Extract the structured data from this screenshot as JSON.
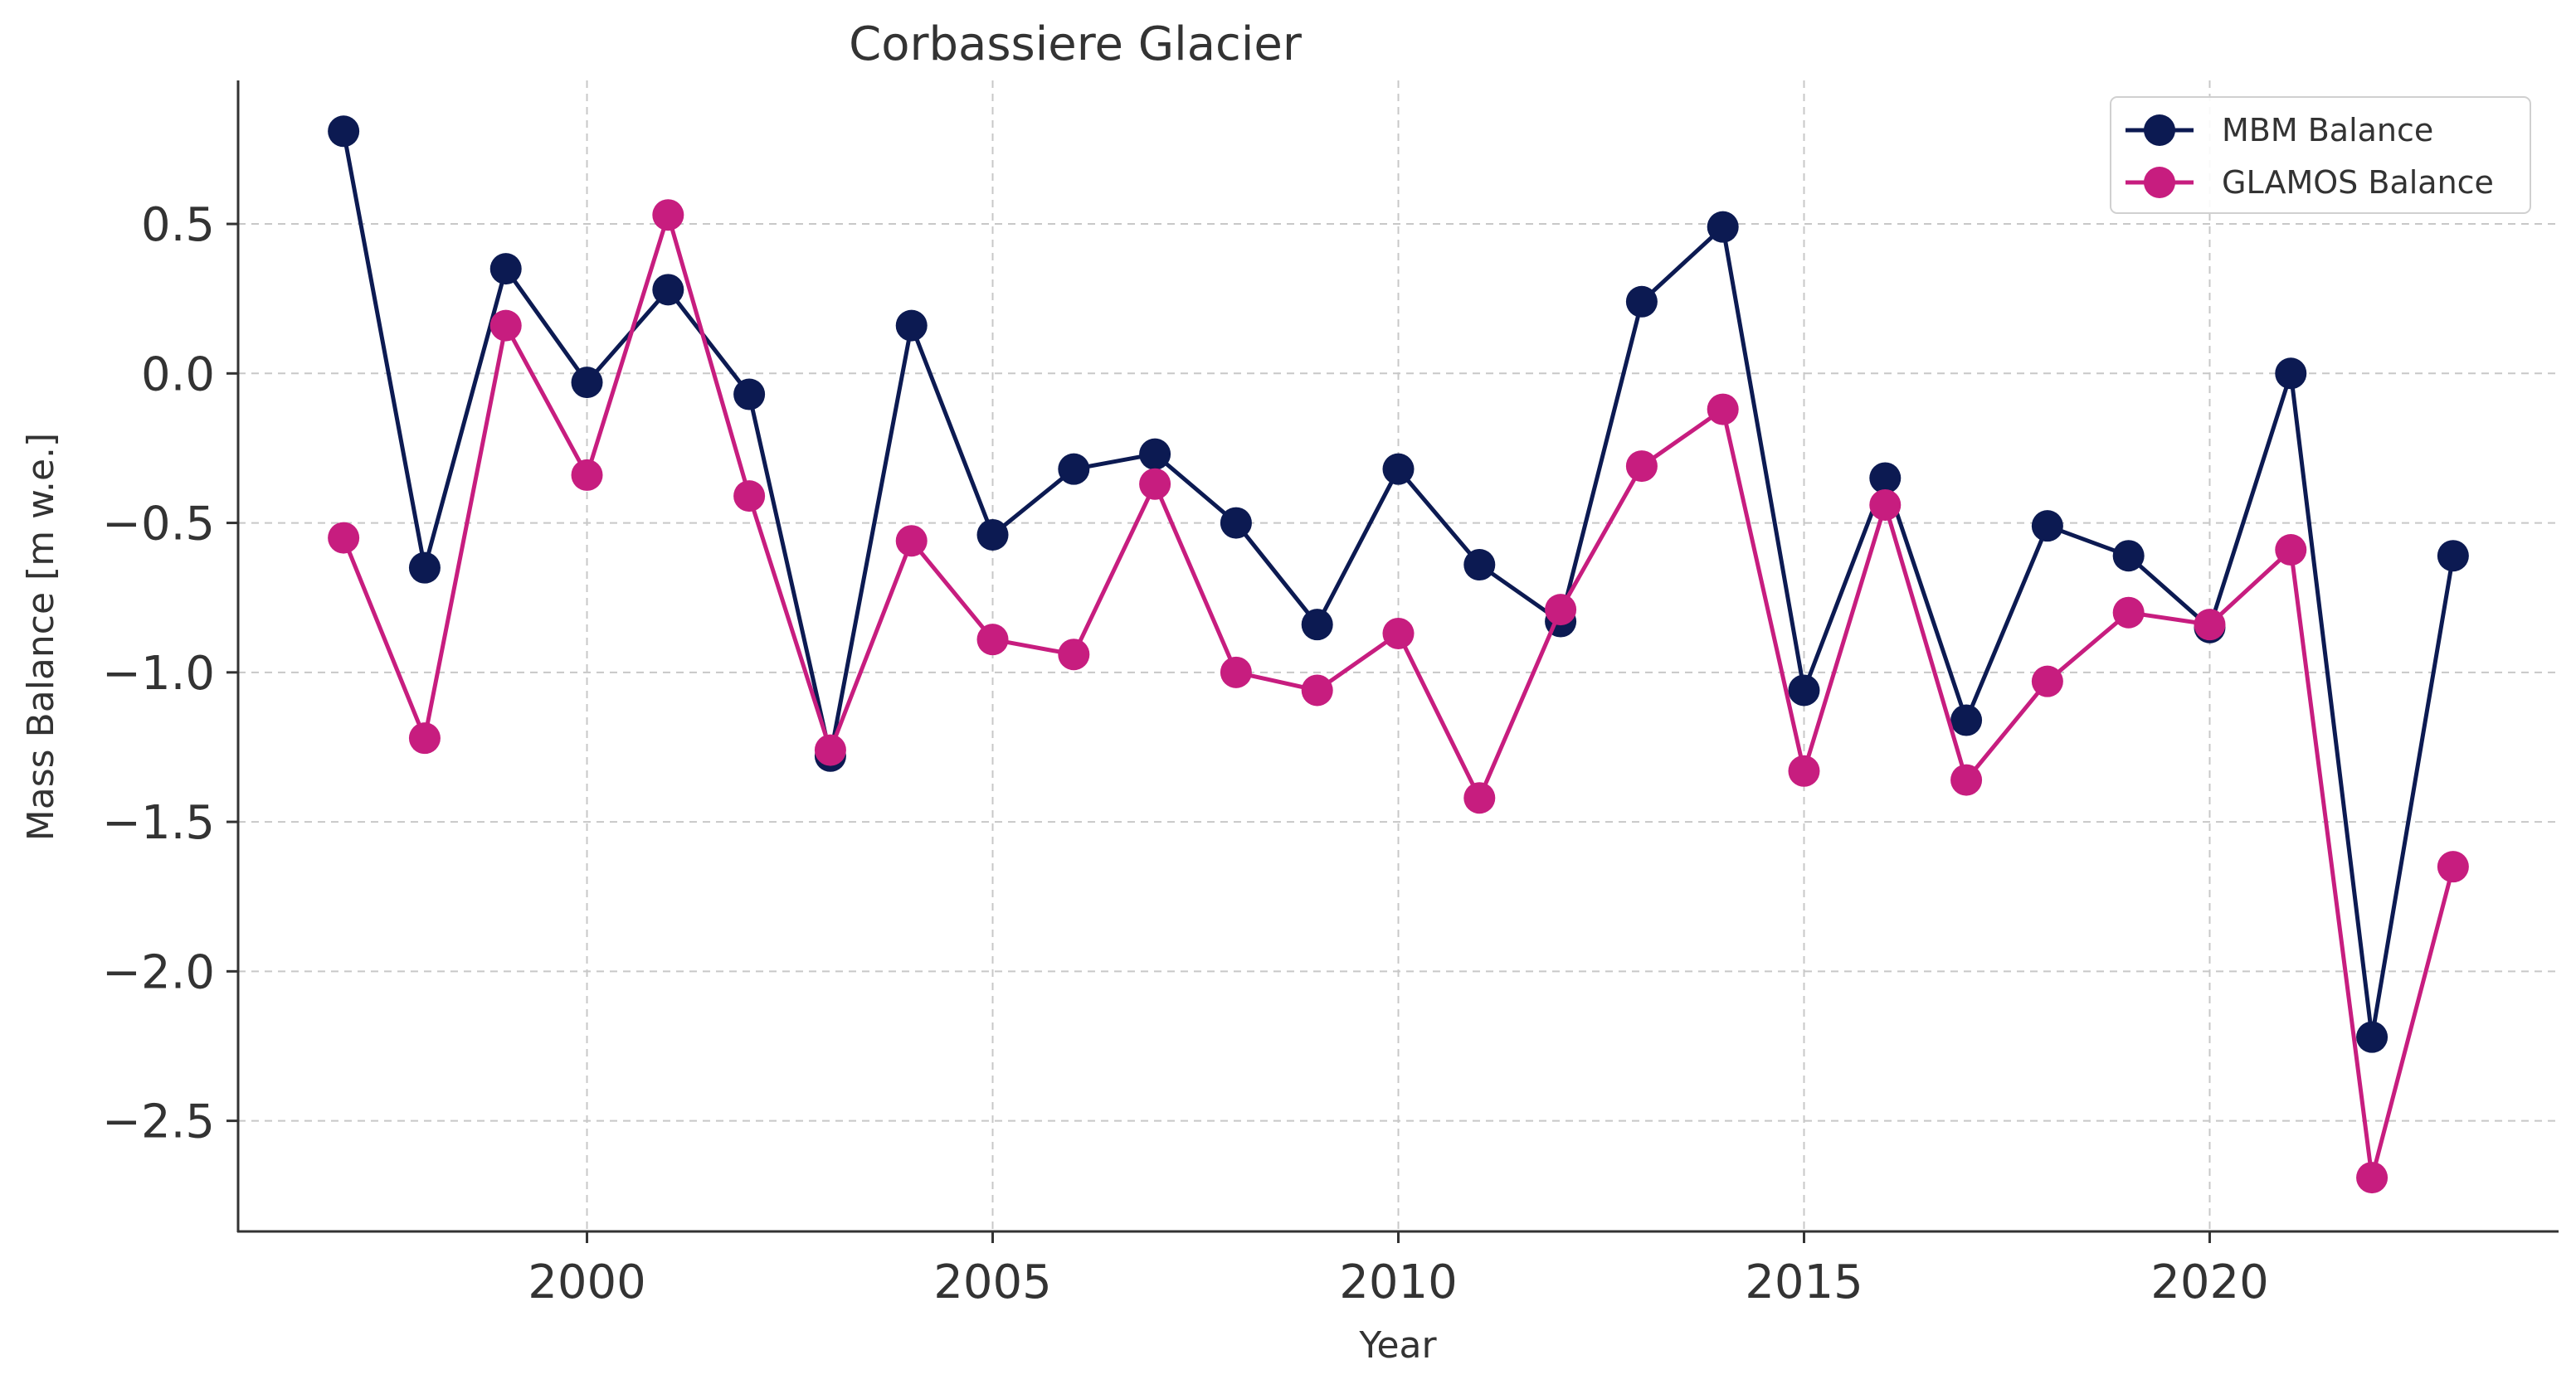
{
  "chart_data": {
    "type": "line",
    "title": "Corbassiere Glacier",
    "xlabel": "Year",
    "ylabel": "Mass Balance [m w.e.]",
    "xlim": [
      1995.7,
      2024.3
    ],
    "ylim": [
      -2.87,
      0.98
    ],
    "x_ticks": [
      2000,
      2005,
      2010,
      2015,
      2020
    ],
    "x_tick_labels": [
      "2000",
      "2005",
      "2010",
      "2015",
      "2020"
    ],
    "y_ticks": [
      0.5,
      0.0,
      -0.5,
      -1.0,
      -1.5,
      -2.0,
      -2.5
    ],
    "y_tick_labels": [
      "0.5",
      "0.0",
      "−0.5",
      "−1.0",
      "−1.5",
      "−2.0",
      "−2.5"
    ],
    "grid": true,
    "legend_position": "top-right",
    "x": [
      1997,
      1998,
      1999,
      2000,
      2001,
      2002,
      2003,
      2004,
      2005,
      2006,
      2007,
      2008,
      2009,
      2010,
      2011,
      2012,
      2013,
      2014,
      2015,
      2016,
      2017,
      2018,
      2019,
      2020,
      2021,
      2022,
      2023
    ],
    "series": [
      {
        "name": "MBM Balance",
        "color": "#0c1a52",
        "values": [
          0.81,
          -0.65,
          0.35,
          -0.03,
          0.28,
          -0.07,
          -1.28,
          0.16,
          -0.54,
          -0.32,
          -0.27,
          -0.5,
          -0.84,
          -0.32,
          -0.64,
          -0.83,
          0.24,
          0.49,
          -1.06,
          -0.35,
          -1.16,
          -0.51,
          -0.61,
          -0.85,
          0.0,
          -2.22,
          -0.61
        ]
      },
      {
        "name": "GLAMOS Balance",
        "color": "#c71d7f",
        "values": [
          -0.55,
          -1.22,
          0.16,
          -0.34,
          0.53,
          -0.41,
          -1.26,
          -0.56,
          -0.89,
          -0.94,
          -0.37,
          -1.0,
          -1.06,
          -0.87,
          -1.42,
          -0.79,
          -0.31,
          -0.12,
          -1.33,
          -0.44,
          -1.36,
          -1.03,
          -0.8,
          -0.84,
          -0.59,
          -2.69,
          -1.65
        ]
      }
    ]
  }
}
